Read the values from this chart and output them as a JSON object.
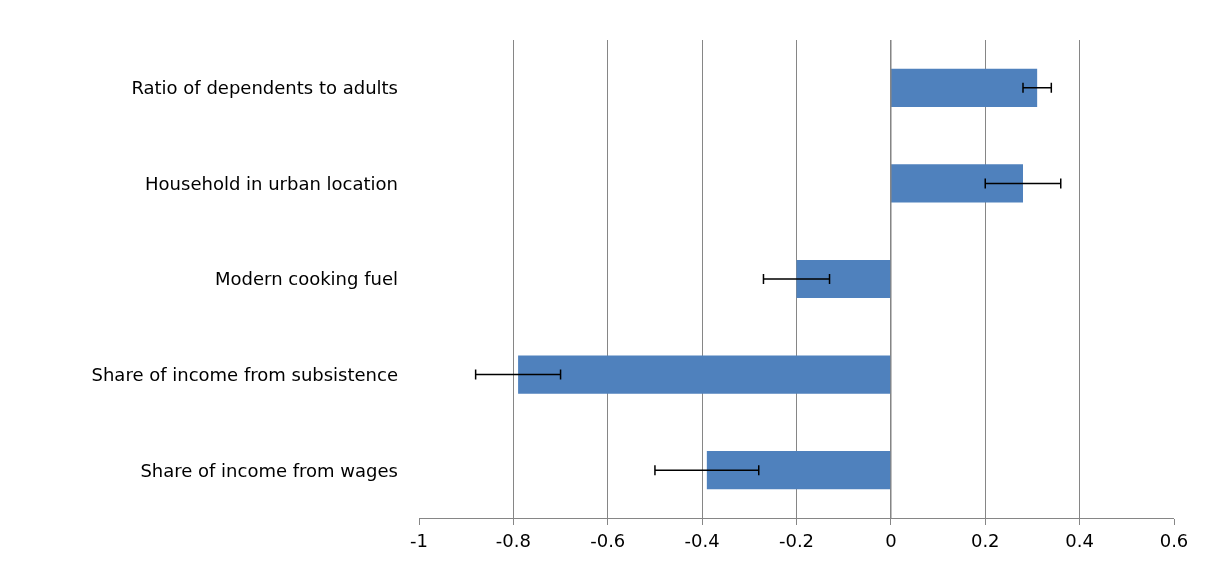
{
  "chart_data": {
    "type": "bar",
    "orientation": "horizontal",
    "categories": [
      "Ratio of dependents to adults",
      "Household in urban location",
      "Modern cooking fuel",
      "Share of income from subsistence",
      "Share of income from wages"
    ],
    "values": [
      0.31,
      0.28,
      -0.2,
      -0.79,
      -0.39
    ],
    "color": "#4f81bd",
    "errors": [
      [
        0.28,
        0.34
      ],
      [
        0.2,
        0.36
      ],
      [
        -0.27,
        -0.13
      ],
      [
        -0.88,
        -0.7
      ],
      [
        -0.5,
        -0.28
      ]
    ],
    "xlim": [
      -1,
      0.6
    ],
    "xticks": [
      -1,
      -0.8,
      -0.6,
      -0.4,
      -0.2,
      0,
      0.2,
      0.4,
      0.6
    ],
    "grid": "x",
    "legend": false
  }
}
